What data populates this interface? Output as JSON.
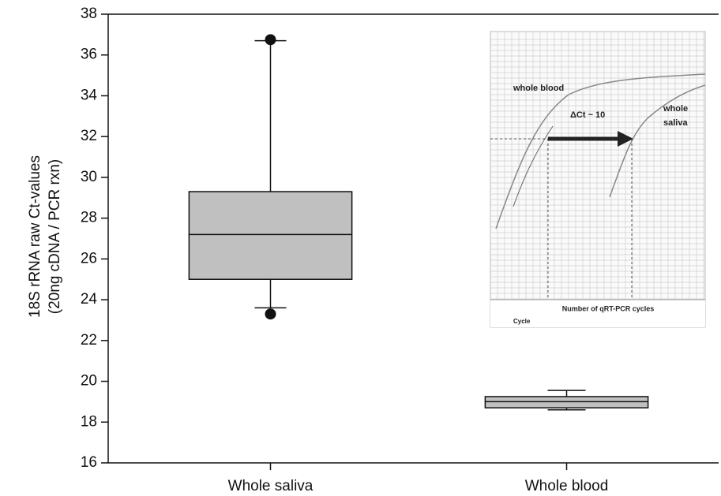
{
  "chart_data": {
    "type": "box",
    "y_label": [
      "18S rRNA raw Ct-values",
      "(20ng cDNA / PCR rxn)"
    ],
    "categories": [
      "Whole saliva",
      "Whole blood"
    ],
    "boxes": [
      {
        "min": 23.6,
        "q1": 25.0,
        "median": 27.2,
        "q3": 29.3,
        "max": 36.7,
        "outliers": [
          36.75,
          23.3
        ]
      },
      {
        "min": 18.6,
        "q1": 18.7,
        "median": 19.0,
        "q3": 19.25,
        "max": 19.55,
        "outliers": []
      }
    ],
    "color": "#c0c0c0",
    "ylim": [
      16,
      38
    ],
    "yticks": [
      16,
      18,
      20,
      22,
      24,
      26,
      28,
      30,
      32,
      34,
      36,
      38
    ],
    "inset_labels": [
      "whole blood",
      "ΔCt ~ 10",
      "whole",
      "saliva",
      "Number of qRT-PCR cycles",
      "Cycle"
    ]
  }
}
